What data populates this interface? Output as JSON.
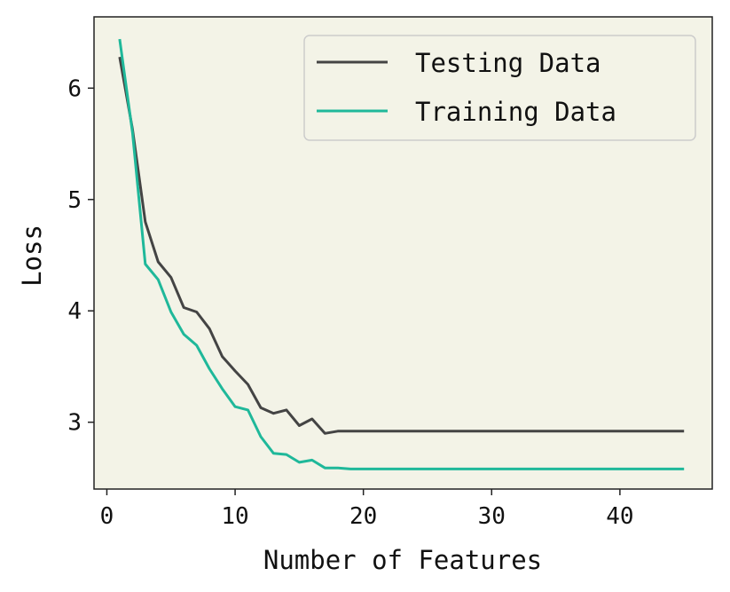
{
  "chart_data": {
    "type": "line",
    "xlabel": "Number of Features",
    "ylabel": "Loss",
    "xlim": [
      -1,
      47.2
    ],
    "ylim": [
      2.4,
      6.64
    ],
    "xticks": [
      0,
      10,
      20,
      30,
      40
    ],
    "yticks": [
      3,
      4,
      5,
      6
    ],
    "grid": false,
    "legend_position": "top-right",
    "background_color": "#f3f3e7",
    "series": [
      {
        "name": "Testing Data",
        "color": "#444444",
        "x": [
          1,
          2,
          3,
          4,
          5,
          6,
          7,
          8,
          9,
          10,
          11,
          12,
          13,
          14,
          15,
          16,
          17,
          18,
          19,
          20,
          21,
          22,
          23,
          24,
          25,
          26,
          27,
          28,
          29,
          30,
          31,
          32,
          33,
          34,
          35,
          36,
          37,
          38,
          39,
          40,
          41,
          42,
          43,
          44,
          45
        ],
        "y": [
          6.28,
          5.63,
          4.8,
          4.44,
          4.3,
          4.03,
          3.99,
          3.84,
          3.59,
          3.46,
          3.34,
          3.13,
          3.08,
          3.11,
          2.97,
          3.03,
          2.9,
          2.92,
          2.92,
          2.92,
          2.92,
          2.92,
          2.92,
          2.92,
          2.92,
          2.92,
          2.92,
          2.92,
          2.92,
          2.92,
          2.92,
          2.92,
          2.92,
          2.92,
          2.92,
          2.92,
          2.92,
          2.92,
          2.92,
          2.92,
          2.92,
          2.92,
          2.92,
          2.92,
          2.92
        ]
      },
      {
        "name": "Training Data",
        "color": "#1fb89a",
        "x": [
          1,
          2,
          3,
          4,
          5,
          6,
          7,
          8,
          9,
          10,
          11,
          12,
          13,
          14,
          15,
          16,
          17,
          18,
          19,
          20,
          21,
          22,
          23,
          24,
          25,
          26,
          27,
          28,
          29,
          30,
          31,
          32,
          33,
          34,
          35,
          36,
          37,
          38,
          39,
          40,
          41,
          42,
          43,
          44,
          45
        ],
        "y": [
          6.44,
          5.6,
          4.42,
          4.28,
          3.99,
          3.79,
          3.69,
          3.48,
          3.3,
          3.14,
          3.11,
          2.87,
          2.72,
          2.71,
          2.64,
          2.66,
          2.59,
          2.59,
          2.58,
          2.58,
          2.58,
          2.58,
          2.58,
          2.58,
          2.58,
          2.58,
          2.58,
          2.58,
          2.58,
          2.58,
          2.58,
          2.58,
          2.58,
          2.58,
          2.58,
          2.58,
          2.58,
          2.58,
          2.58,
          2.58,
          2.58,
          2.58,
          2.58,
          2.58,
          2.58
        ]
      }
    ]
  }
}
